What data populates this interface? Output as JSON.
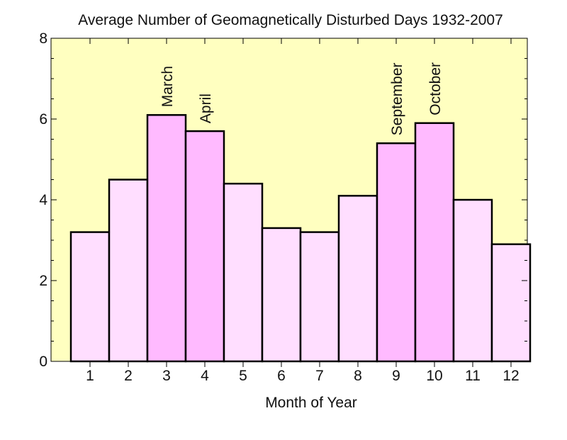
{
  "chart_data": {
    "type": "bar",
    "title": "Average Number of Geomagnetically Disturbed Days 1932-2007",
    "xlabel": "Month of Year",
    "ylabel": "",
    "categories": [
      "1",
      "2",
      "3",
      "4",
      "5",
      "6",
      "7",
      "8",
      "9",
      "10",
      "11",
      "12"
    ],
    "values": [
      3.2,
      4.5,
      6.1,
      5.7,
      4.4,
      3.3,
      3.2,
      4.1,
      5.4,
      5.9,
      4.0,
      2.9
    ],
    "highlight": [
      false,
      false,
      true,
      true,
      false,
      false,
      false,
      false,
      true,
      true,
      false,
      false
    ],
    "annotations": [
      {
        "category": "3",
        "text": "March"
      },
      {
        "category": "4",
        "text": "April"
      },
      {
        "category": "9",
        "text": "September"
      },
      {
        "category": "10",
        "text": "October"
      }
    ],
    "yticks": [
      0,
      2,
      4,
      6,
      8
    ],
    "ylim": [
      0,
      8
    ],
    "grid": false,
    "legend": "none",
    "colors": {
      "plot_background": "#ffffc0",
      "bar_fill": "#ffdeff",
      "bar_highlight_fill": "#ffbaff",
      "bar_stroke": "#000000",
      "axis": "#000000"
    }
  }
}
